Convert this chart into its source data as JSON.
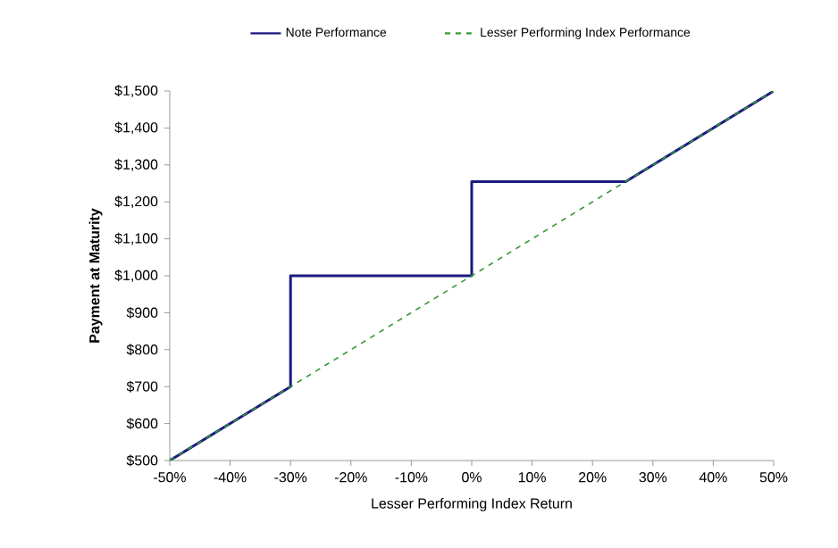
{
  "chart_data": {
    "type": "line",
    "xlabel": "Lesser Performing Index Return",
    "ylabel": "Payment at Maturity",
    "xlim": [
      -50,
      50
    ],
    "ylim": [
      500,
      1500
    ],
    "xticks": [
      {
        "value": -50,
        "label": "-50%"
      },
      {
        "value": -40,
        "label": "-40%"
      },
      {
        "value": -30,
        "label": "-30%"
      },
      {
        "value": -20,
        "label": "-20%"
      },
      {
        "value": -10,
        "label": "-10%"
      },
      {
        "value": 0,
        "label": "0%"
      },
      {
        "value": 10,
        "label": "10%"
      },
      {
        "value": 20,
        "label": "20%"
      },
      {
        "value": 30,
        "label": "30%"
      },
      {
        "value": 40,
        "label": "40%"
      },
      {
        "value": 50,
        "label": "50%"
      }
    ],
    "yticks": [
      {
        "value": 500,
        "label": "$500"
      },
      {
        "value": 600,
        "label": "$600"
      },
      {
        "value": 700,
        "label": "$700"
      },
      {
        "value": 800,
        "label": "$800"
      },
      {
        "value": 900,
        "label": "$900"
      },
      {
        "value": 1000,
        "label": "$1,000"
      },
      {
        "value": 1100,
        "label": "$1,100"
      },
      {
        "value": 1200,
        "label": "$1,200"
      },
      {
        "value": 1300,
        "label": "$1,300"
      },
      {
        "value": 1400,
        "label": "$1,400"
      },
      {
        "value": 1500,
        "label": "$1,500"
      }
    ],
    "series": [
      {
        "name": "Note Performance",
        "color": "#1a1a80",
        "line_style": "solid",
        "x": [
          -50,
          -30,
          -30,
          0,
          0,
          25.5,
          50
        ],
        "values": [
          500,
          700,
          1000,
          1000,
          1255,
          1255,
          1500
        ]
      },
      {
        "name": "Lesser Performing Index Performance",
        "color": "#339933",
        "line_style": "dashed",
        "x": [
          -50,
          50
        ],
        "values": [
          500,
          1500
        ]
      }
    ],
    "legend": "top",
    "grid": false,
    "marker": "none"
  }
}
